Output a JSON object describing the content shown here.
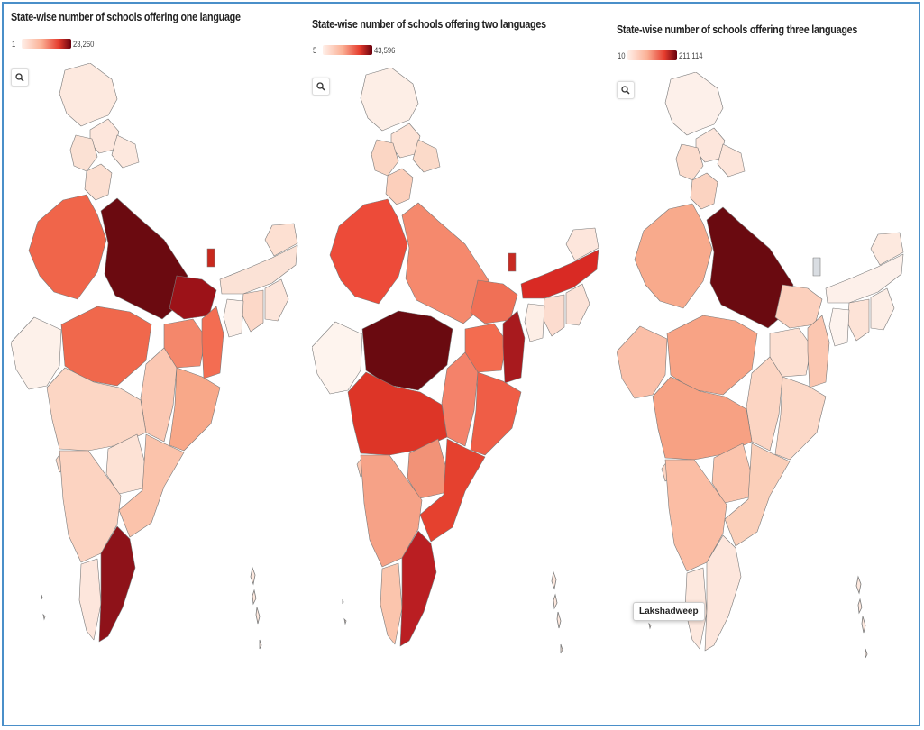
{
  "maps": [
    {
      "title": "State-wise number of schools offering one language",
      "legend": {
        "min": "1",
        "max": "23,260",
        "color_low": "#fff0ea",
        "color_high": "#67000d"
      },
      "colors": {
        "jk": "#fde9df",
        "hp": "#fde6dc",
        "pb": "#fbe1d4",
        "uk": "#fde8de",
        "hr": "#fcdfd1",
        "up": "#6b0a10",
        "rj": "#f0654a",
        "gj": "#fdf1ea",
        "mp": "#f0684c",
        "bi": "#9c1218",
        "jh": "#f4876b",
        "wb": "#f36d52",
        "or": "#f8a889",
        "cg": "#fbc8b3",
        "mh": "#fcd6c4",
        "tg": "#fde2d5",
        "ap": "#fbc3ab",
        "ka": "#fcd3c1",
        "go": "#fcd8c7",
        "ke": "#fde6dc",
        "tn": "#8e1219",
        "ne1": "#fbe2d6",
        "ne2": "#fde0d2",
        "ne3": "#fcd8c8",
        "ne4": "#fde5da",
        "ne5": "#fdefe8",
        "sk": "#c8281d"
      }
    },
    {
      "title": "State-wise number of schools offering two languages",
      "legend": {
        "min": "5",
        "max": "43,596",
        "color_low": "#fff0ea",
        "color_high": "#67000d"
      },
      "colors": {
        "jk": "#fdeee6",
        "hp": "#fde2d5",
        "pb": "#fbd6c4",
        "uk": "#fbdac9",
        "hr": "#fccfbb",
        "up": "#f5896d",
        "rj": "#ed4b39",
        "gj": "#fef4ee",
        "mp": "#6a0a10",
        "bi": "#f07056",
        "jh": "#f36c50",
        "wb": "#a81a1e",
        "or": "#ef5d46",
        "cg": "#f4826a",
        "mh": "#dd3527",
        "tg": "#f29277",
        "ap": "#e5412f",
        "ka": "#f6a287",
        "go": "#fac8b3",
        "ke": "#fbc5ad",
        "tn": "#ba1e22",
        "ne1": "#d92a24",
        "ne2": "#fde6dc",
        "ne3": "#fcdccf",
        "ne4": "#fce2d7",
        "ne5": "#fdeee6",
        "sk": "#c82a22"
      }
    },
    {
      "title": "State-wise number of schools offering three languages",
      "legend": {
        "min": "10",
        "max": "211,114",
        "color_low": "#fff0ea",
        "color_high": "#67000d"
      },
      "colors": {
        "jk": "#fdf0ea",
        "hp": "#fde6dc",
        "pb": "#fcdccd",
        "uk": "#fde5da",
        "hr": "#fbd3c1",
        "up": "#6a0a10",
        "rj": "#f8aa8c",
        "gj": "#fbbfa8",
        "mp": "#f8a385",
        "bi": "#fcd0bd",
        "jh": "#fde0d2",
        "wb": "#fbc6b0",
        "or": "#fcd8c7",
        "cg": "#fcd5c3",
        "mh": "#f7a183",
        "tg": "#fbc4ad",
        "ap": "#fbcfb9",
        "ka": "#fbbda4",
        "go": "#fcd5c3",
        "ke": "#fde8de",
        "tn": "#fde6dc",
        "ne1": "#fdf0ea",
        "ne2": "#fde9df",
        "ne3": "#fde3d7",
        "ne4": "#fdeee6",
        "ne5": "#fdf3ee",
        "sk": "#d9dde2"
      },
      "tooltip": "Lakshadweep"
    }
  ]
}
